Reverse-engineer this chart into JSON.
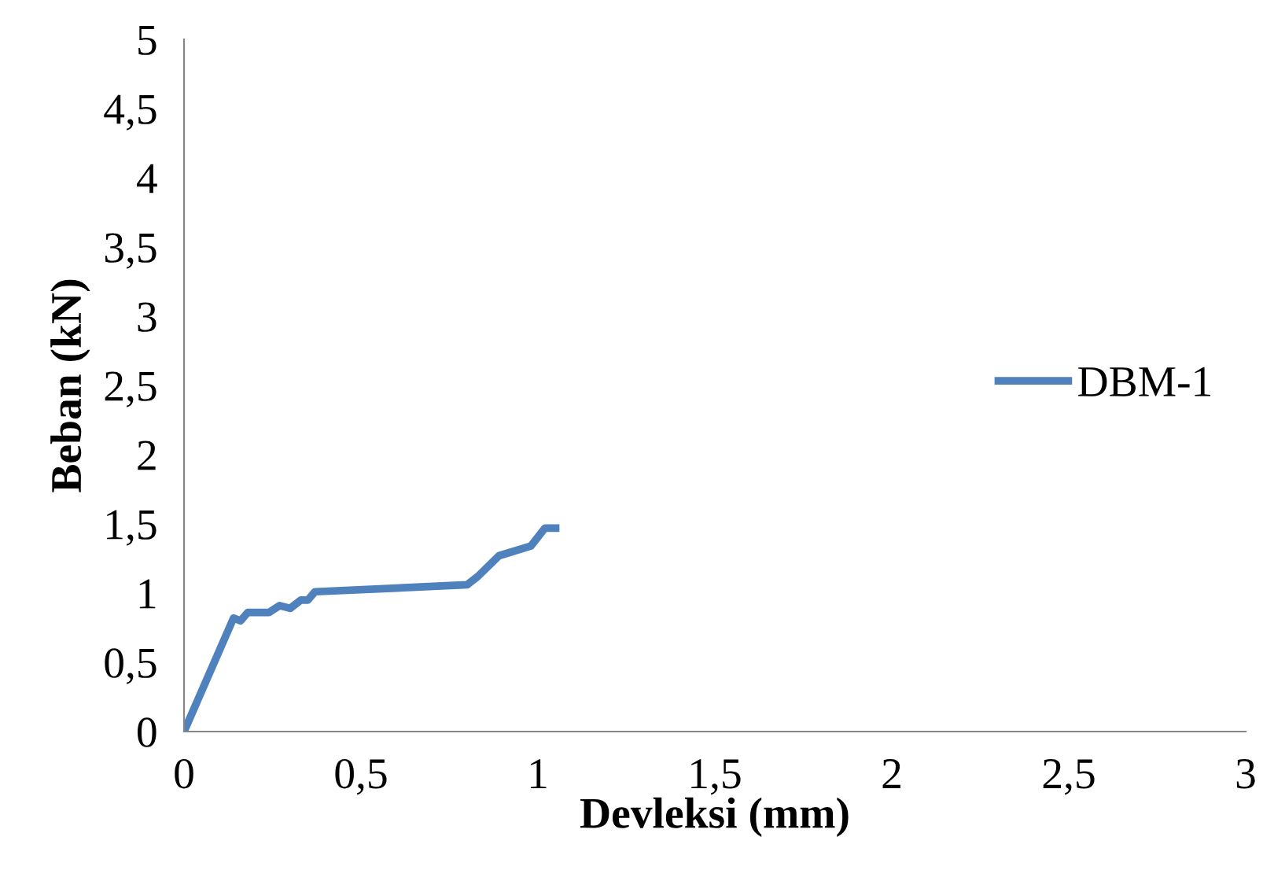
{
  "chart_data": {
    "type": "line",
    "xlabel": "Devleksi (mm)",
    "ylabel": "Beban (kN)",
    "xlim": [
      0,
      3
    ],
    "xticks": [
      0,
      {
        "value": 0.5,
        "label": "0,5"
      },
      1,
      {
        "value": 1.5,
        "label": "1,5"
      },
      2,
      {
        "value": 2.5,
        "label": "2,5"
      },
      3
    ],
    "ylim": [
      0,
      5
    ],
    "yticks": [
      0,
      {
        "value": 0.5,
        "label": "0,5"
      },
      1,
      {
        "value": 1.5,
        "label": "1,5"
      },
      2,
      {
        "value": 2.5,
        "label": "2,5"
      },
      3,
      {
        "value": 3.5,
        "label": "3,5"
      },
      4,
      {
        "value": 4.5,
        "label": "4,5"
      },
      5
    ],
    "grid": false,
    "legend": "right",
    "marker": "none",
    "line_style": "solid",
    "series": [
      {
        "name": "DBM-1",
        "color": "#4f81bd",
        "x": [
          0,
          0.14,
          0.16,
          0.18,
          0.24,
          0.27,
          0.3,
          0.33,
          0.35,
          0.37,
          0.8,
          0.83,
          0.89,
          0.98,
          1.02,
          1.05
        ],
        "values": [
          0,
          0.82,
          0.8,
          0.86,
          0.86,
          0.91,
          0.89,
          0.95,
          0.95,
          1.01,
          1.06,
          1.12,
          1.27,
          1.34,
          1.47,
          1.47
        ]
      }
    ]
  }
}
